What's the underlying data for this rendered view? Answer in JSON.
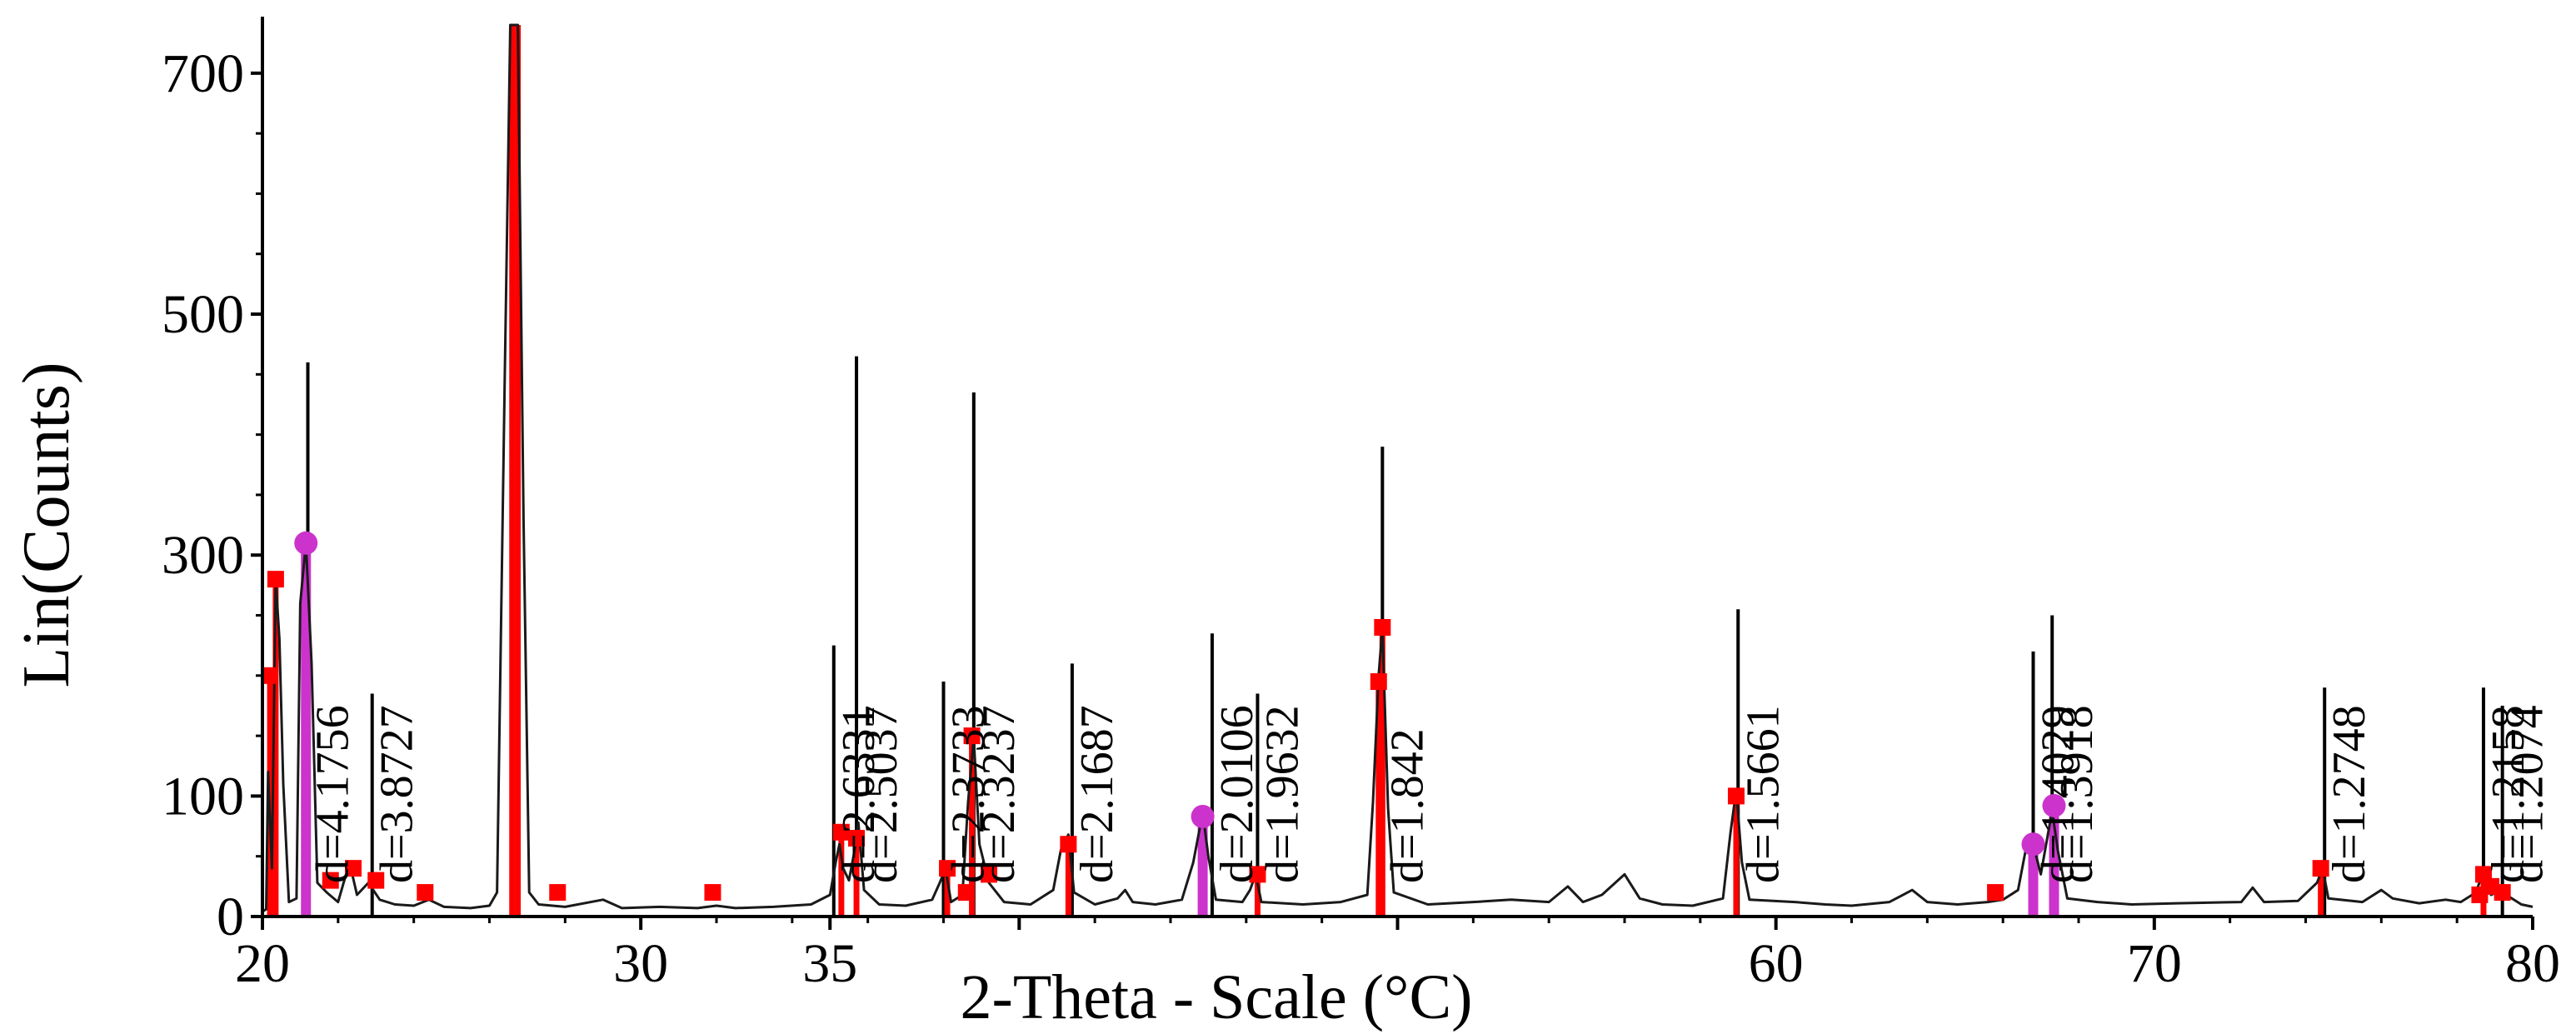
{
  "chart_data": {
    "type": "line",
    "title": "",
    "xlabel": "2-Theta - Scale (°C)",
    "ylabel": "Lin(Counts)",
    "xlim": [
      20,
      80
    ],
    "ylim": [
      0,
      740
    ],
    "x_ticks": [
      20,
      30,
      35,
      40,
      50,
      60,
      70,
      80
    ],
    "x_tick_labels": [
      "20",
      "30",
      "35",
      "",
      "",
      "60",
      "70",
      "80"
    ],
    "y_ticks": [
      0,
      100,
      300,
      500,
      700
    ],
    "y_tick_labels": [
      "0",
      "100",
      "300",
      "500",
      "700"
    ],
    "grid": false,
    "colors": {
      "trace": "#1a1a1a",
      "phase_a": "#ff0000",
      "phase_b": "#cc33cc",
      "d_line": "#000000"
    },
    "pattern": [
      [
        20.0,
        4
      ],
      [
        20.1,
        6
      ],
      [
        20.15,
        120
      ],
      [
        20.25,
        40
      ],
      [
        20.35,
        280
      ],
      [
        20.45,
        230
      ],
      [
        20.55,
        110
      ],
      [
        20.7,
        12
      ],
      [
        20.9,
        15
      ],
      [
        21.0,
        260
      ],
      [
        21.15,
        310
      ],
      [
        21.3,
        210
      ],
      [
        21.45,
        28
      ],
      [
        21.7,
        20
      ],
      [
        22.0,
        12
      ],
      [
        22.3,
        45
      ],
      [
        22.5,
        18
      ],
      [
        22.8,
        28
      ],
      [
        23.1,
        14
      ],
      [
        23.5,
        10
      ],
      [
        24.0,
        9
      ],
      [
        24.4,
        14
      ],
      [
        24.8,
        8
      ],
      [
        25.5,
        7
      ],
      [
        26.0,
        9
      ],
      [
        26.2,
        20
      ],
      [
        26.4,
        440
      ],
      [
        26.55,
        740
      ],
      [
        26.75,
        740
      ],
      [
        26.9,
        330
      ],
      [
        27.05,
        20
      ],
      [
        27.3,
        10
      ],
      [
        28.0,
        8
      ],
      [
        29.0,
        14
      ],
      [
        29.5,
        7
      ],
      [
        30.5,
        8
      ],
      [
        31.5,
        7
      ],
      [
        32.0,
        9
      ],
      [
        32.5,
        7
      ],
      [
        33.5,
        8
      ],
      [
        34.5,
        10
      ],
      [
        35.0,
        18
      ],
      [
        35.15,
        45
      ],
      [
        35.25,
        60
      ],
      [
        35.35,
        40
      ],
      [
        35.5,
        30
      ],
      [
        35.65,
        55
      ],
      [
        35.75,
        78
      ],
      [
        35.9,
        22
      ],
      [
        36.3,
        10
      ],
      [
        37.0,
        9
      ],
      [
        37.7,
        14
      ],
      [
        37.9,
        28
      ],
      [
        38.05,
        40
      ],
      [
        38.2,
        12
      ],
      [
        38.5,
        18
      ],
      [
        38.65,
        95
      ],
      [
        38.8,
        148
      ],
      [
        38.95,
        60
      ],
      [
        39.2,
        28
      ],
      [
        39.6,
        12
      ],
      [
        40.3,
        10
      ],
      [
        40.9,
        22
      ],
      [
        41.1,
        55
      ],
      [
        41.3,
        68
      ],
      [
        41.45,
        20
      ],
      [
        42.0,
        10
      ],
      [
        42.6,
        15
      ],
      [
        42.8,
        22
      ],
      [
        43.0,
        12
      ],
      [
        43.6,
        10
      ],
      [
        44.3,
        14
      ],
      [
        44.6,
        45
      ],
      [
        44.85,
        86
      ],
      [
        45.0,
        50
      ],
      [
        45.2,
        14
      ],
      [
        45.9,
        12
      ],
      [
        46.1,
        22
      ],
      [
        46.25,
        35
      ],
      [
        46.4,
        12
      ],
      [
        47.5,
        10
      ],
      [
        48.5,
        12
      ],
      [
        49.2,
        18
      ],
      [
        49.35,
        95
      ],
      [
        49.5,
        200
      ],
      [
        49.6,
        240
      ],
      [
        49.75,
        90
      ],
      [
        49.9,
        20
      ],
      [
        50.8,
        10
      ],
      [
        52.0,
        12
      ],
      [
        53.0,
        14
      ],
      [
        54.0,
        12
      ],
      [
        54.5,
        25
      ],
      [
        54.9,
        12
      ],
      [
        55.4,
        18
      ],
      [
        56.0,
        35
      ],
      [
        56.4,
        15
      ],
      [
        57.0,
        10
      ],
      [
        57.8,
        9
      ],
      [
        58.6,
        15
      ],
      [
        58.8,
        70
      ],
      [
        58.95,
        105
      ],
      [
        59.1,
        45
      ],
      [
        59.3,
        14
      ],
      [
        60.5,
        12
      ],
      [
        61.3,
        10
      ],
      [
        62.0,
        9
      ],
      [
        63.0,
        12
      ],
      [
        63.6,
        22
      ],
      [
        64.0,
        12
      ],
      [
        64.8,
        10
      ],
      [
        65.6,
        12
      ],
      [
        66.0,
        14
      ],
      [
        66.4,
        22
      ],
      [
        66.6,
        55
      ],
      [
        66.8,
        60
      ],
      [
        67.0,
        35
      ],
      [
        67.3,
        88
      ],
      [
        67.45,
        55
      ],
      [
        67.7,
        15
      ],
      [
        68.5,
        12
      ],
      [
        69.4,
        10
      ],
      [
        70.6,
        11
      ],
      [
        72.3,
        12
      ],
      [
        72.6,
        24
      ],
      [
        72.9,
        12
      ],
      [
        73.8,
        13
      ],
      [
        74.3,
        28
      ],
      [
        74.45,
        40
      ],
      [
        74.6,
        15
      ],
      [
        75.5,
        12
      ],
      [
        76.0,
        22
      ],
      [
        76.3,
        15
      ],
      [
        77.0,
        11
      ],
      [
        77.7,
        14
      ],
      [
        78.1,
        12
      ],
      [
        78.5,
        20
      ],
      [
        78.7,
        38
      ],
      [
        78.9,
        18
      ],
      [
        79.2,
        22
      ],
      [
        79.4,
        16
      ],
      [
        79.7,
        10
      ],
      [
        80.0,
        8
      ]
    ],
    "stick_peaks": [
      {
        "x": 20.35,
        "y": 280,
        "phase": "phase_a"
      },
      {
        "x": 20.2,
        "y": 200,
        "phase": "phase_a"
      },
      {
        "x": 21.15,
        "y": 310,
        "phase": "phase_b"
      },
      {
        "x": 26.6,
        "y": 740,
        "phase": "phase_a"
      },
      {
        "x": 26.75,
        "y": 740,
        "phase": "phase_a"
      },
      {
        "x": 35.3,
        "y": 70,
        "phase": "phase_a"
      },
      {
        "x": 35.7,
        "y": 65,
        "phase": "phase_a"
      },
      {
        "x": 38.1,
        "y": 40,
        "phase": "phase_a"
      },
      {
        "x": 38.75,
        "y": 150,
        "phase": "phase_a"
      },
      {
        "x": 41.3,
        "y": 60,
        "phase": "phase_a"
      },
      {
        "x": 44.85,
        "y": 83,
        "phase": "phase_b"
      },
      {
        "x": 46.3,
        "y": 35,
        "phase": "phase_a"
      },
      {
        "x": 49.5,
        "y": 195,
        "phase": "phase_a"
      },
      {
        "x": 49.6,
        "y": 240,
        "phase": "phase_a"
      },
      {
        "x": 58.95,
        "y": 100,
        "phase": "phase_a"
      },
      {
        "x": 66.8,
        "y": 60,
        "phase": "phase_b"
      },
      {
        "x": 67.35,
        "y": 92,
        "phase": "phase_b"
      },
      {
        "x": 74.4,
        "y": 40,
        "phase": "phase_a"
      },
      {
        "x": 78.7,
        "y": 35,
        "phase": "phase_a"
      }
    ],
    "extra_markers": [
      {
        "x": 21.8,
        "y": 30,
        "phase": "phase_a"
      },
      {
        "x": 22.4,
        "y": 40,
        "phase": "phase_a"
      },
      {
        "x": 23.0,
        "y": 30,
        "phase": "phase_a"
      },
      {
        "x": 24.3,
        "y": 20,
        "phase": "phase_a"
      },
      {
        "x": 27.8,
        "y": 20,
        "phase": "phase_a"
      },
      {
        "x": 31.9,
        "y": 20,
        "phase": "phase_a"
      },
      {
        "x": 38.6,
        "y": 20,
        "phase": "phase_a"
      },
      {
        "x": 39.2,
        "y": 35,
        "phase": "phase_a"
      },
      {
        "x": 65.8,
        "y": 20,
        "phase": "phase_a"
      },
      {
        "x": 78.6,
        "y": 18,
        "phase": "phase_a"
      },
      {
        "x": 78.9,
        "y": 25,
        "phase": "phase_a"
      },
      {
        "x": 79.2,
        "y": 20,
        "phase": "phase_a"
      }
    ],
    "d_spacings": [
      {
        "label": "d=4.1756",
        "x": 21.2,
        "top": 460
      },
      {
        "label": "d=3.8727",
        "x": 22.9,
        "top": 185
      },
      {
        "label": "d=2.6331",
        "x": 35.1,
        "top": 225
      },
      {
        "label": "d=2.5037",
        "x": 35.7,
        "top": 465
      },
      {
        "label": "d=2.3733",
        "x": 38.0,
        "top": 195
      },
      {
        "label": "d=2.3237",
        "x": 38.8,
        "top": 435
      },
      {
        "label": "d=2.1687",
        "x": 41.4,
        "top": 210
      },
      {
        "label": "d=2.0106",
        "x": 45.1,
        "top": 235
      },
      {
        "label": "d=1.9632",
        "x": 46.3,
        "top": 185
      },
      {
        "label": "d=1.842",
        "x": 49.6,
        "top": 390
      },
      {
        "label": "d=1.5661",
        "x": 59.0,
        "top": 255
      },
      {
        "label": "d=1.4029",
        "x": 66.8,
        "top": 220
      },
      {
        "label": "d=1.3918",
        "x": 67.3,
        "top": 250
      },
      {
        "label": "d=1.2748",
        "x": 74.5,
        "top": 190
      },
      {
        "label": "d=1.2158",
        "x": 78.7,
        "top": 190
      },
      {
        "label": "d=1.2074",
        "x": 79.2,
        "top": 175
      }
    ]
  }
}
